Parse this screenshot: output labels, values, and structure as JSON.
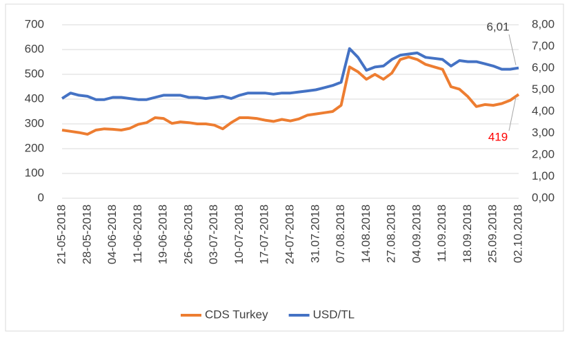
{
  "chart_data": {
    "type": "line",
    "categories": [
      "21-05-2018",
      null,
      null,
      "28-05-2018",
      null,
      null,
      "04-06-2018",
      null,
      null,
      "11-06-2018",
      null,
      null,
      "19-06-2018",
      null,
      null,
      "26-06-2018",
      null,
      null,
      "03-07-2018",
      null,
      null,
      "10-07-2018",
      null,
      null,
      "17-07-2018",
      null,
      null,
      "24-07-2018",
      null,
      null,
      "31.07.2018",
      null,
      null,
      "07.08.2018",
      null,
      null,
      "14.08.2018",
      null,
      null,
      "27.08.2018",
      null,
      null,
      "04.09.2018",
      null,
      null,
      "11.09.2018",
      null,
      null,
      "18.09.2018",
      null,
      null,
      "25.09.2018",
      null,
      null,
      "02.10.2018"
    ],
    "series": [
      {
        "name": "CDS Turkey",
        "color": "#ED7D31",
        "axis": "y",
        "values": [
          275,
          270,
          265,
          258,
          275,
          280,
          278,
          275,
          282,
          298,
          305,
          325,
          322,
          302,
          308,
          305,
          300,
          300,
          295,
          280,
          305,
          325,
          325,
          322,
          315,
          310,
          318,
          312,
          320,
          335,
          340,
          345,
          350,
          375,
          530,
          510,
          480,
          500,
          480,
          505,
          560,
          570,
          560,
          540,
          530,
          520,
          450,
          440,
          410,
          370,
          378,
          375,
          382,
          395,
          419
        ],
        "value_labels": [
          null,
          null,
          null,
          null,
          null,
          null,
          null,
          null,
          null,
          null,
          null,
          null,
          null,
          null,
          null,
          null,
          null,
          null,
          null,
          null,
          null,
          null,
          null,
          null,
          null,
          null,
          null,
          null,
          null,
          null,
          null,
          null,
          null,
          null,
          null,
          null,
          null,
          null,
          null,
          null,
          null,
          null,
          null,
          null,
          null,
          null,
          null,
          null,
          null,
          null,
          null,
          null,
          null,
          null,
          "419"
        ],
        "value_label_color": "#FF0000"
      },
      {
        "name": "USD/TL",
        "color": "#4472C4",
        "axis": "y2",
        "values": [
          4.6,
          4.85,
          4.75,
          4.7,
          4.55,
          4.55,
          4.65,
          4.65,
          4.6,
          4.55,
          4.55,
          4.65,
          4.75,
          4.75,
          4.75,
          4.65,
          4.65,
          4.6,
          4.65,
          4.7,
          4.6,
          4.75,
          4.85,
          4.85,
          4.85,
          4.8,
          4.85,
          4.85,
          4.9,
          4.95,
          5.0,
          5.1,
          5.2,
          5.35,
          6.9,
          6.5,
          5.9,
          6.05,
          6.1,
          6.4,
          6.6,
          6.65,
          6.7,
          6.5,
          6.45,
          6.4,
          6.1,
          6.35,
          6.3,
          6.3,
          6.2,
          6.1,
          5.95,
          5.95,
          6.01
        ],
        "value_labels": [
          null,
          null,
          null,
          null,
          null,
          null,
          null,
          null,
          null,
          null,
          null,
          null,
          null,
          null,
          null,
          null,
          null,
          null,
          null,
          null,
          null,
          null,
          null,
          null,
          null,
          null,
          null,
          null,
          null,
          null,
          null,
          null,
          null,
          null,
          null,
          null,
          null,
          null,
          null,
          null,
          null,
          null,
          null,
          null,
          null,
          null,
          null,
          null,
          null,
          null,
          null,
          null,
          null,
          null,
          "6,01"
        ],
        "value_label_color": "#404040"
      }
    ],
    "ylim": [
      0,
      700
    ],
    "yticks": [
      0,
      100,
      200,
      300,
      400,
      500,
      600,
      700
    ],
    "y2lim": [
      0,
      8
    ],
    "y2ticks": [
      {
        "value": 0,
        "label": "0,00"
      },
      {
        "value": 1,
        "label": "1,00"
      },
      {
        "value": 2,
        "label": "2,00"
      },
      {
        "value": 3,
        "label": "3,00"
      },
      {
        "value": 4,
        "label": "4,00"
      },
      {
        "value": 5,
        "label": "5,00"
      },
      {
        "value": 6,
        "label": "6,00"
      },
      {
        "value": 7,
        "label": "7,00"
      },
      {
        "value": 8,
        "label": "8,00"
      }
    ],
    "grid": true,
    "legend": "bottom"
  }
}
